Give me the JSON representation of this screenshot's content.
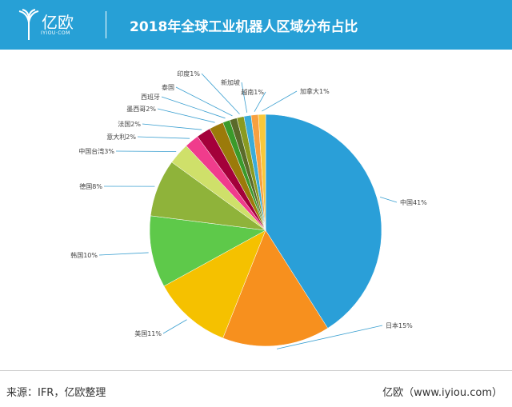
{
  "header": {
    "brand": "亿欧",
    "brand_sub": "IYIOU·COM",
    "title": "2018年全球工业机器人区域分布占比"
  },
  "footer": {
    "source": "来源：IFR，亿欧整理",
    "site": "亿欧（www.iyiou.com）"
  },
  "chart_data": {
    "type": "pie",
    "title": "2018年全球工业机器人区域分布占比",
    "unit": "%",
    "slices": [
      {
        "label": "中国41%",
        "category": "中国",
        "value": 41,
        "color": "#2a9fd8"
      },
      {
        "label": "日本15%",
        "category": "日本",
        "value": 15,
        "color": "#f7901e"
      },
      {
        "label": "美国11%",
        "category": "美国",
        "value": 11,
        "color": "#f5c100"
      },
      {
        "label": "韩国10%",
        "category": "韩国",
        "value": 10,
        "color": "#5ec94a"
      },
      {
        "label": "德国8%",
        "category": "德国",
        "value": 8,
        "color": "#8fb33a"
      },
      {
        "label": "中国台湾3%",
        "category": "中国台湾",
        "value": 3,
        "color": "#cfe06a"
      },
      {
        "label": "意大利2%",
        "category": "意大利",
        "value": 2,
        "color": "#f03c8c"
      },
      {
        "label": "法国2%",
        "category": "法国",
        "value": 2,
        "color": "#a4003a"
      },
      {
        "label": "墨西哥2%",
        "category": "墨西哥",
        "value": 2,
        "color": "#9b7a0a"
      },
      {
        "label": "西班牙",
        "category": "西班牙",
        "value": 1,
        "color": "#3a9a2a"
      },
      {
        "label": "泰国",
        "category": "泰国",
        "value": 1,
        "color": "#5a6a2a"
      },
      {
        "label": "印度1%",
        "category": "印度",
        "value": 1,
        "color": "#8a9a20"
      },
      {
        "label": "新加坡",
        "category": "新加坡",
        "value": 1,
        "color": "#3aacd8"
      },
      {
        "label": "越南1%",
        "category": "越南",
        "value": 1,
        "color": "#f7a040"
      },
      {
        "label": "加拿大1%",
        "category": "加拿大",
        "value": 1,
        "color": "#f8c83a"
      }
    ]
  }
}
